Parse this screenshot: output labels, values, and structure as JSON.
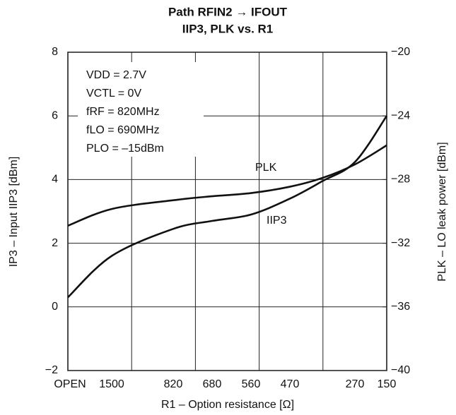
{
  "chart_data": {
    "type": "line",
    "title": "Path RFIN2 → IFOUT",
    "subtitle": "IIP3, PLK vs. R1",
    "x_label": "R1 – Option resistance [Ω]",
    "y_label": "IP3 – Input IIP3 [dBm]",
    "y2_label": "PLK – LO leak power [dBm]",
    "annotations": [
      "VDD = 2.7V",
      "VCTL = 0V",
      "fRF = 820MHz",
      "fLO = 690MHz",
      "PLO = –15dBm"
    ],
    "categories": [
      "OPEN",
      "1500",
      "820",
      "680",
      "560",
      "470",
      null,
      "270",
      "150"
    ],
    "series": [
      {
        "name": "IIP3",
        "color": "#111111",
        "values": [
          0.3,
          1.6,
          2.45,
          2.7,
          2.9,
          3.4,
          3.95,
          4.55,
          6.0
        ]
      },
      {
        "name": "PLK",
        "color": "#111111",
        "axis": "y2",
        "values": [
          -30.9,
          -29.85,
          -29.3,
          -29.05,
          -28.85,
          -28.45,
          -27.9,
          -27.05,
          -25.85
        ]
      }
    ],
    "ylim": [
      -2,
      8
    ],
    "yticks": [
      {
        "value": -2,
        "label": "−2"
      },
      0,
      2,
      4,
      6,
      8
    ],
    "y2lim": [
      -40,
      -20
    ],
    "y2ticks": [
      {
        "value": -40,
        "label": "−40"
      },
      {
        "value": -36,
        "label": "−36"
      },
      {
        "value": -32,
        "label": "−32"
      },
      {
        "value": -28,
        "label": "−28"
      },
      {
        "value": -24,
        "label": "−24"
      },
      {
        "value": -20,
        "label": "−20"
      }
    ],
    "grid": true
  }
}
